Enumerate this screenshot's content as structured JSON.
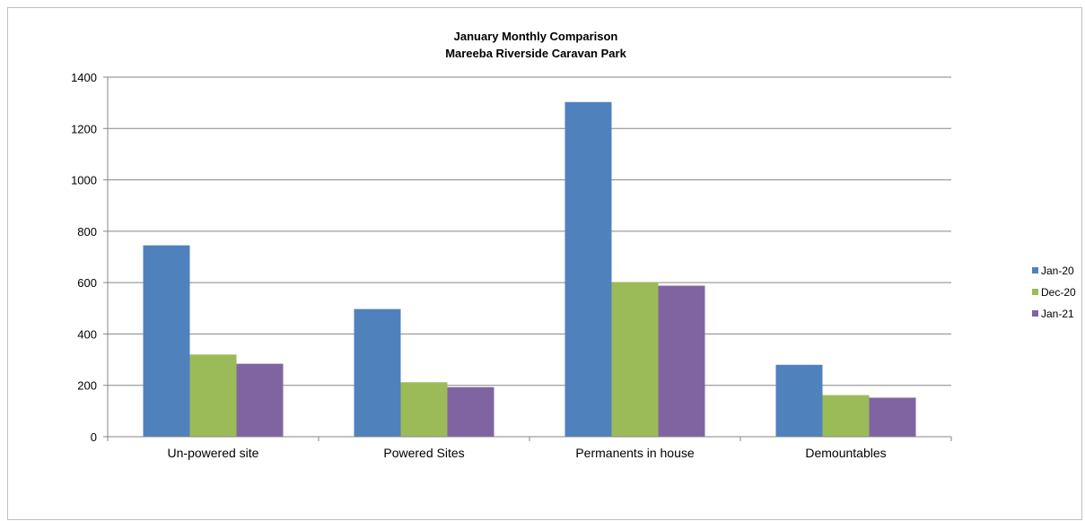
{
  "chart_data": {
    "type": "bar",
    "title": "January  Monthly Comparison",
    "subtitle": "Mareeba Riverside Caravan Park",
    "categories": [
      "Un-powered site",
      "Powered Sites",
      "Permanents in house",
      "Demountables"
    ],
    "series": [
      {
        "name": "Jan-20",
        "color": "#4f81bd",
        "values": [
          745,
          497,
          1303,
          280
        ]
      },
      {
        "name": "Dec-20",
        "color": "#9bbb59",
        "values": [
          320,
          212,
          602,
          162
        ]
      },
      {
        "name": "Jan-21",
        "color": "#8064a2",
        "values": [
          284,
          193,
          588,
          152
        ]
      }
    ],
    "ylim": [
      0,
      1400
    ],
    "yticks": [
      0,
      200,
      400,
      600,
      800,
      1000,
      1200,
      1400
    ],
    "grid": true,
    "legend_position": "right"
  }
}
